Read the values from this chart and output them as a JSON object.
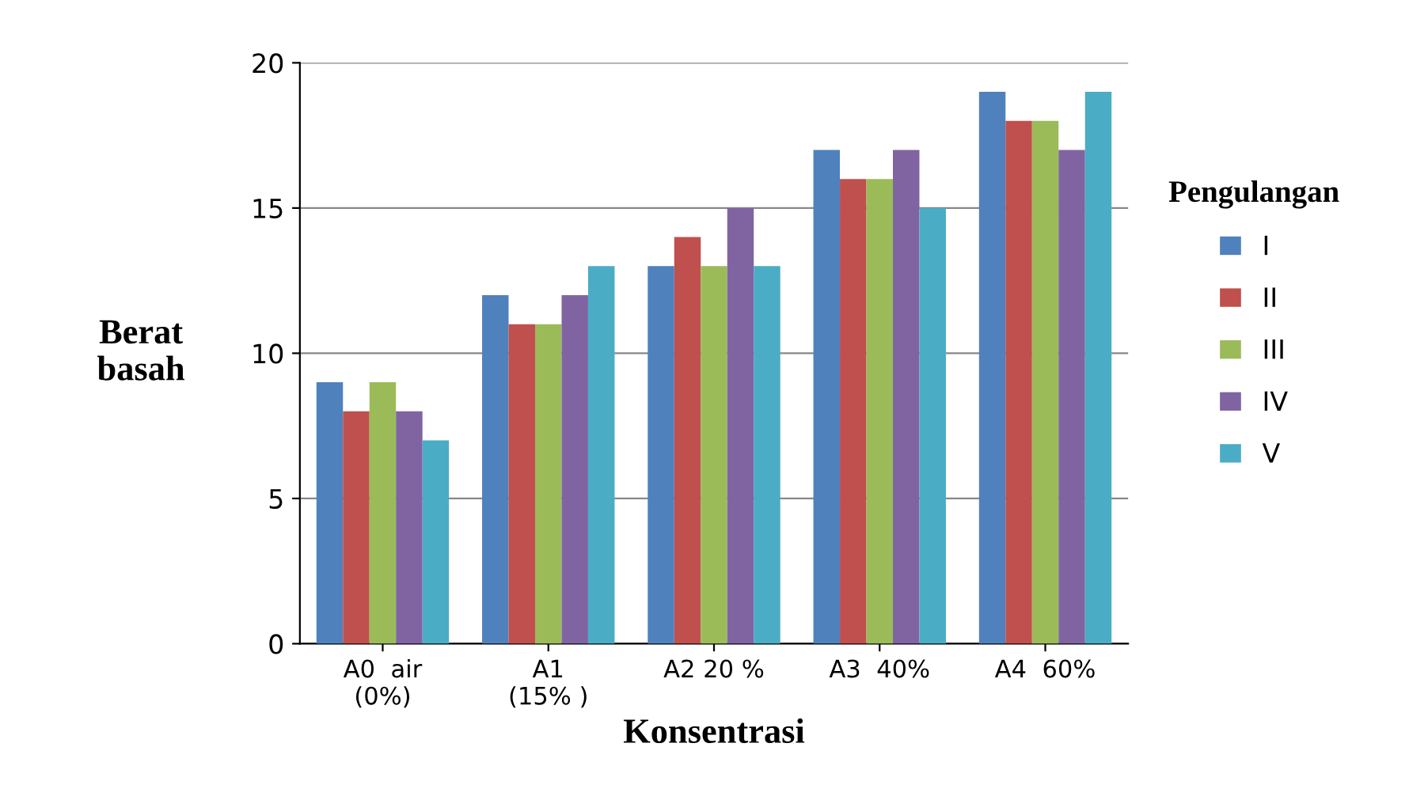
{
  "chart_data": {
    "type": "bar",
    "xlabel": "Konsentrasi",
    "ylabel": "Berat\nbasah",
    "legend_title": "Pengulangan",
    "categories": [
      "A0  air\n(0%)",
      "A1\n(15% )",
      "A2 20 %",
      "A3  40%",
      "A4  60%"
    ],
    "series": [
      {
        "name": "I",
        "color": "#4f81bd",
        "values": [
          9,
          12,
          13,
          17,
          19
        ]
      },
      {
        "name": "II",
        "color": "#c0504d",
        "values": [
          8,
          11,
          14,
          16,
          18
        ]
      },
      {
        "name": "III",
        "color": "#9bbb59",
        "values": [
          9,
          11,
          13,
          16,
          18
        ]
      },
      {
        "name": "IV",
        "color": "#8064a2",
        "values": [
          8,
          12,
          15,
          17,
          17
        ]
      },
      {
        "name": "V",
        "color": "#4bacc6",
        "values": [
          7,
          13,
          13,
          15,
          19
        ]
      }
    ],
    "ylim": [
      0,
      20
    ],
    "yticks": [
      0,
      5,
      10,
      15,
      20
    ],
    "grid": "y",
    "legend": "right"
  }
}
